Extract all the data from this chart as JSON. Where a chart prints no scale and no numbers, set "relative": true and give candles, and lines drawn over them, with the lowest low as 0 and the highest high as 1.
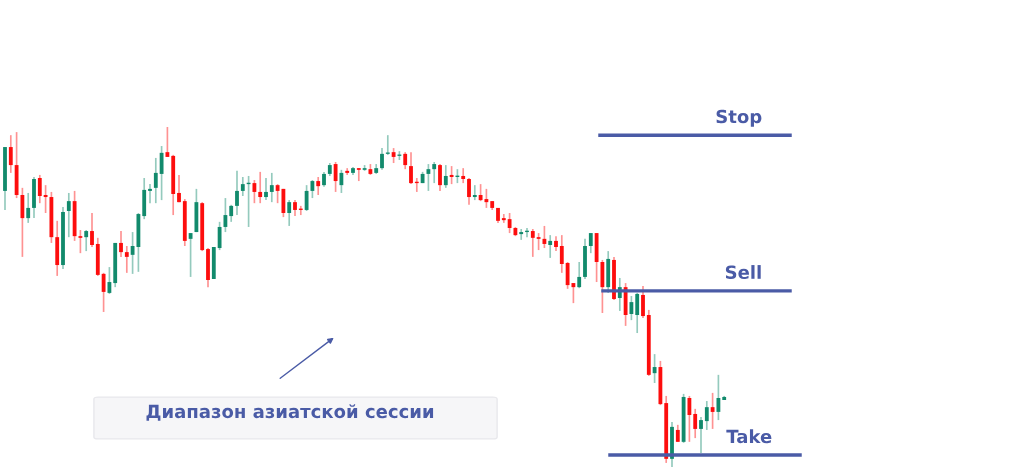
{
  "chart_data": {
    "type": "candlestick",
    "relative": true,
    "colors": [
      "#128a6c",
      "#fd0d0d",
      "#fd0d0d",
      "#fd0d0d",
      "#128a6c",
      "#128a6c",
      "#fd0d0d",
      "#fd0d0d",
      "#fd0d0d",
      "#fd0d0d",
      "#128a6c",
      "#128a6c",
      "#fd0d0d",
      "#fd0d0d",
      "#128a6c",
      "#fd0d0d",
      "#fd0d0d",
      "#fd0d0d",
      "#128a6c",
      "#128a6c",
      "#fd0d0d",
      "#fd0d0d",
      "#128a6c",
      "#128a6c",
      "#128a6c",
      "#128a6c",
      "#128a6c",
      "#128a6c",
      "#fd0d0d",
      "#fd0d0d",
      "#fd0d0d",
      "#fd0d0d",
      "#128a6c",
      "#128a6c",
      "#fd0d0d",
      "#fd0d0d",
      "#128a6c",
      "#128a6c",
      "#128a6c",
      "#128a6c",
      "#128a6c",
      "#128a6c",
      "#128a6c",
      "#fd0d0d",
      "#fd0d0d",
      "#128a6c",
      "#128a6c",
      "#fd0d0d",
      "#fd0d0d",
      "#128a6c",
      "#fd0d0d",
      "#fd0d0d",
      "#128a6c",
      "#128a6c",
      "#fd0d0d",
      "#128a6c",
      "#128a6c",
      "#fd0d0d",
      "#128a6c",
      "#fd0d0d",
      "#128a6c",
      "#fd0d0d",
      "#128a6c",
      "#fd0d0d",
      "#128a6c",
      "#128a6c",
      "#128a6c",
      "#fd0d0d",
      "#128a6c",
      "#fd0d0d",
      "#fd0d0d",
      "#fd0d0d",
      "#128a6c",
      "#128a6c",
      "#128a6c",
      "#fd0d0d",
      "#128a6c",
      "#fd0d0d",
      "#128a6c",
      "#fd0d0d",
      "#fd0d0d",
      "#128a6c",
      "#fd0d0d",
      "#fd0d0d",
      "#fd0d0d",
      "#fd0d0d",
      "#fd0d0d",
      "#fd0d0d",
      "#fd0d0d",
      "#128a6c",
      "#128a6c",
      "#fd0d0d",
      "#fd0d0d",
      "#fd0d0d",
      "#128a6c",
      "#fd0d0d",
      "#fd0d0d",
      "#fd0d0d",
      "#fd0d0d",
      "#128a6c",
      "#128a6c",
      "#128a6c",
      "#fd0d0d",
      "#fd0d0d",
      "#128a6c",
      "#fd0d0d",
      "#128a6c",
      "#fd0d0d",
      "#128a6c",
      "#128a6c",
      "#fd0d0d",
      "#fd0d0d",
      "#128a6c",
      "#fd0d0d",
      "#fd0d0d",
      "#128a6c",
      "#fd0d0d",
      "#128a6c",
      "#fd0d0d",
      "#fd0d0d",
      "#128a6c",
      "#128a6c",
      "#fd0d0d",
      "#128a6c",
      "#128a6c"
    ],
    "categories": [
      null,
      null,
      null,
      null,
      null,
      null,
      null,
      null,
      null,
      null,
      null,
      null,
      null,
      null,
      null,
      null,
      null,
      null,
      null,
      null,
      null,
      null,
      null,
      null,
      null,
      null,
      null,
      null,
      null,
      null,
      null,
      null,
      null,
      null,
      null,
      null,
      null,
      null,
      null,
      null,
      null,
      null,
      null,
      null,
      null,
      null,
      null,
      null,
      null,
      null,
      null,
      null,
      null,
      null,
      null,
      null,
      null,
      null,
      null,
      null,
      null,
      null,
      null,
      null,
      null,
      null,
      null,
      null,
      null,
      null,
      null,
      null,
      null,
      null,
      null,
      null,
      null,
      null,
      null,
      null,
      null,
      null,
      null,
      null,
      null,
      null,
      null,
      null,
      null,
      null,
      null,
      null,
      null,
      null,
      null,
      null,
      null,
      null,
      null,
      null,
      null,
      null,
      null,
      null,
      null,
      null,
      null,
      null,
      null,
      null,
      null,
      null,
      null,
      null,
      null,
      null,
      null,
      null,
      null,
      null,
      null,
      null,
      null,
      null,
      null
    ],
    "ohlc": [
      [
        0.812,
        0.941,
        0.756,
        0.941
      ],
      [
        0.941,
        0.976,
        0.865,
        0.888
      ],
      [
        0.888,
        0.985,
        0.791,
        0.8
      ],
      [
        0.8,
        0.821,
        0.618,
        0.732
      ],
      [
        0.732,
        0.806,
        0.718,
        0.762
      ],
      [
        0.762,
        0.853,
        0.732,
        0.847
      ],
      [
        0.85,
        0.859,
        0.776,
        0.797
      ],
      [
        0.8,
        0.829,
        0.747,
        0.794
      ],
      [
        0.794,
        0.809,
        0.659,
        0.676
      ],
      [
        0.676,
        0.724,
        0.562,
        0.594
      ],
      [
        0.594,
        0.765,
        0.582,
        0.75
      ],
      [
        0.753,
        0.806,
        0.676,
        0.782
      ],
      [
        0.782,
        0.812,
        0.665,
        0.679
      ],
      [
        0.679,
        0.697,
        0.629,
        0.674
      ],
      [
        0.676,
        0.697,
        0.635,
        0.694
      ],
      [
        0.694,
        0.747,
        0.647,
        0.653
      ],
      [
        0.656,
        0.674,
        0.562,
        0.565
      ],
      [
        0.568,
        0.571,
        0.456,
        0.515
      ],
      [
        0.512,
        0.588,
        0.509,
        0.544
      ],
      [
        0.541,
        0.659,
        0.529,
        0.659
      ],
      [
        0.659,
        0.694,
        0.618,
        0.632
      ],
      [
        0.632,
        0.65,
        0.571,
        0.618
      ],
      [
        0.624,
        0.691,
        0.568,
        0.65
      ],
      [
        0.647,
        0.747,
        0.574,
        0.744
      ],
      [
        0.738,
        0.85,
        0.729,
        0.815
      ],
      [
        0.812,
        0.832,
        0.776,
        0.818
      ],
      [
        0.821,
        0.909,
        0.776,
        0.865
      ],
      [
        0.862,
        0.944,
        0.785,
        0.924
      ],
      [
        0.926,
        1.0,
        0.912,
        0.912
      ],
      [
        0.915,
        0.918,
        0.741,
        0.803
      ],
      [
        0.806,
        0.859,
        0.779,
        0.779
      ],
      [
        0.782,
        0.788,
        0.65,
        0.665
      ],
      [
        0.671,
        0.688,
        0.559,
        0.688
      ],
      [
        0.691,
        0.818,
        0.691,
        0.779
      ],
      [
        0.776,
        0.779,
        0.635,
        0.638
      ],
      [
        0.641,
        0.644,
        0.529,
        0.55
      ],
      [
        0.553,
        0.647,
        0.553,
        0.647
      ],
      [
        0.644,
        0.721,
        0.638,
        0.706
      ],
      [
        0.706,
        0.791,
        0.691,
        0.741
      ],
      [
        0.738,
        0.771,
        0.721,
        0.768
      ],
      [
        0.768,
        0.871,
        0.741,
        0.812
      ],
      [
        0.812,
        0.853,
        0.797,
        0.832
      ],
      [
        0.832,
        0.856,
        0.706,
        0.835
      ],
      [
        0.835,
        0.844,
        0.776,
        0.809
      ],
      [
        0.809,
        0.868,
        0.776,
        0.794
      ],
      [
        0.794,
        0.85,
        0.785,
        0.809
      ],
      [
        0.809,
        0.865,
        0.779,
        0.829
      ],
      [
        0.829,
        0.832,
        0.776,
        0.812
      ],
      [
        0.818,
        0.818,
        0.735,
        0.747
      ],
      [
        0.747,
        0.785,
        0.709,
        0.779
      ],
      [
        0.779,
        0.785,
        0.738,
        0.756
      ],
      [
        0.759,
        0.768,
        0.741,
        0.756
      ],
      [
        0.756,
        0.829,
        0.753,
        0.812
      ],
      [
        0.812,
        0.844,
        0.791,
        0.841
      ],
      [
        0.841,
        0.853,
        0.8,
        0.826
      ],
      [
        0.829,
        0.868,
        0.824,
        0.862
      ],
      [
        0.862,
        0.894,
        0.856,
        0.888
      ],
      [
        0.891,
        0.897,
        0.809,
        0.841
      ],
      [
        0.829,
        0.874,
        0.806,
        0.865
      ],
      [
        0.871,
        0.879,
        0.859,
        0.865
      ],
      [
        0.865,
        0.882,
        0.859,
        0.879
      ],
      [
        0.879,
        0.879,
        0.841,
        0.874
      ],
      [
        0.874,
        0.888,
        0.871,
        0.879
      ],
      [
        0.876,
        0.891,
        0.859,
        0.862
      ],
      [
        0.865,
        0.891,
        0.862,
        0.879
      ],
      [
        0.879,
        0.938,
        0.874,
        0.921
      ],
      [
        0.921,
        0.976,
        0.918,
        0.924
      ],
      [
        0.926,
        0.938,
        0.894,
        0.912
      ],
      [
        0.915,
        0.929,
        0.903,
        0.918
      ],
      [
        0.921,
        0.926,
        0.876,
        0.888
      ],
      [
        0.885,
        0.926,
        0.832,
        0.835
      ],
      [
        0.838,
        0.85,
        0.809,
        0.835
      ],
      [
        0.835,
        0.868,
        0.835,
        0.862
      ],
      [
        0.862,
        0.891,
        0.812,
        0.876
      ],
      [
        0.876,
        0.897,
        0.835,
        0.891
      ],
      [
        0.888,
        0.891,
        0.812,
        0.829
      ],
      [
        0.829,
        0.888,
        0.821,
        0.856
      ],
      [
        0.859,
        0.885,
        0.832,
        0.853
      ],
      [
        0.853,
        0.876,
        0.835,
        0.856
      ],
      [
        0.856,
        0.879,
        0.835,
        0.847
      ],
      [
        0.847,
        0.85,
        0.771,
        0.794
      ],
      [
        0.794,
        0.829,
        0.785,
        0.8
      ],
      [
        0.8,
        0.832,
        0.782,
        0.785
      ],
      [
        0.788,
        0.818,
        0.762,
        0.779
      ],
      [
        0.782,
        0.782,
        0.756,
        0.762
      ],
      [
        0.762,
        0.762,
        0.718,
        0.724
      ],
      [
        0.732,
        0.744,
        0.718,
        0.726
      ],
      [
        0.729,
        0.747,
        0.688,
        0.703
      ],
      [
        0.703,
        0.706,
        0.679,
        0.682
      ],
      [
        0.685,
        0.7,
        0.668,
        0.691
      ],
      [
        0.691,
        0.703,
        0.676,
        0.694
      ],
      [
        0.694,
        0.7,
        0.618,
        0.674
      ],
      [
        0.676,
        0.688,
        0.638,
        0.671
      ],
      [
        0.671,
        0.709,
        0.644,
        0.656
      ],
      [
        0.653,
        0.682,
        0.615,
        0.665
      ],
      [
        0.665,
        0.679,
        0.635,
        0.647
      ],
      [
        0.65,
        0.682,
        0.571,
        0.597
      ],
      [
        0.6,
        0.603,
        0.524,
        0.535
      ],
      [
        0.541,
        0.541,
        0.482,
        0.529
      ],
      [
        0.529,
        0.603,
        0.526,
        0.559
      ],
      [
        0.559,
        0.671,
        0.553,
        0.65
      ],
      [
        0.65,
        0.688,
        0.629,
        0.688
      ],
      [
        0.688,
        0.688,
        0.544,
        0.603
      ],
      [
        0.603,
        0.609,
        0.453,
        0.529
      ],
      [
        0.529,
        0.635,
        0.512,
        0.612
      ],
      [
        0.609,
        0.618,
        0.491,
        0.494
      ],
      [
        0.497,
        0.556,
        0.459,
        0.529
      ],
      [
        0.529,
        0.541,
        0.415,
        0.447
      ],
      [
        0.45,
        0.503,
        0.432,
        0.485
      ],
      [
        0.447,
        0.512,
        0.394,
        0.509
      ],
      [
        0.506,
        0.532,
        0.438,
        0.444
      ],
      [
        0.447,
        0.462,
        0.268,
        0.271
      ],
      [
        0.276,
        0.332,
        0.247,
        0.294
      ],
      [
        0.294,
        0.312,
        0.182,
        0.185
      ],
      [
        0.188,
        0.209,
        0.012,
        0.024
      ],
      [
        0.024,
        0.132,
        0.0,
        0.118
      ],
      [
        0.109,
        0.124,
        0.074,
        0.074
      ],
      [
        0.074,
        0.215,
        0.071,
        0.206
      ],
      [
        0.203,
        0.209,
        0.074,
        0.153
      ],
      [
        0.156,
        0.171,
        0.085,
        0.112
      ],
      [
        0.112,
        0.147,
        0.041,
        0.138
      ],
      [
        0.135,
        0.194,
        0.109,
        0.176
      ],
      [
        0.176,
        0.218,
        0.112,
        0.162
      ],
      [
        0.162,
        0.271,
        0.138,
        0.203
      ],
      [
        0.197,
        0.209,
        0.197,
        0.206
      ]
    ],
    "ref_lines": [
      {
        "axis": "y",
        "value": 0.976,
        "label": "Stop",
        "color": "#4a5ba6"
      },
      {
        "axis": "y",
        "value": 0.518,
        "label": "Sell",
        "color": "#4a5ba6"
      },
      {
        "axis": "y",
        "value": 0.035,
        "label": "Take",
        "color": "#4a5ba6"
      }
    ],
    "annotations": [
      "Диапазон азиатской сессии"
    ]
  }
}
